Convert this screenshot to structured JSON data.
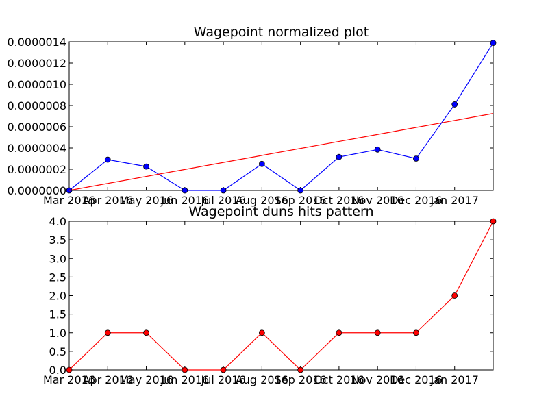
{
  "chart_data": [
    {
      "type": "line",
      "title": "Wagepoint normalized plot",
      "xlabel": "",
      "ylabel": "",
      "categories": [
        "Mar 2016",
        "Apr 2016",
        "May 2016",
        "Jun 2016",
        "Jul 2016",
        "Aug 2016",
        "Sep 2016",
        "Oct 2016",
        "Nov 2016",
        "Dec 2016",
        "Jan 2017"
      ],
      "ylim": [
        0,
        1.4e-06
      ],
      "yticks": [
        "0.0000000",
        "0.0000002",
        "0.0000004",
        "0.0000006",
        "0.0000008",
        "0.0000010",
        "0.0000012",
        "0.0000014"
      ],
      "grid": false,
      "series": [
        {
          "color": "#0000ff",
          "marker": "circle",
          "x": [
            0,
            1,
            2,
            3,
            4,
            5,
            6,
            7,
            8,
            9,
            10,
            11
          ],
          "values": [
            0.0,
            2.9e-07,
            2.25e-07,
            0.0,
            0.0,
            2.5e-07,
            0.0,
            3.15e-07,
            3.85e-07,
            3e-07,
            8.1e-07,
            1.39e-06
          ]
        },
        {
          "color": "#ff0000",
          "marker": "none",
          "x": [
            0,
            11
          ],
          "values": [
            0.0,
            7.25e-07
          ]
        }
      ]
    },
    {
      "type": "line",
      "title": "Wagepoint duns hits pattern",
      "xlabel": "",
      "ylabel": "",
      "categories": [
        "Mar 2016",
        "Apr 2016",
        "May 2016",
        "Jun 2016",
        "Jul 2016",
        "Aug 2016",
        "Sep 2016",
        "Oct 2016",
        "Nov 2016",
        "Dec 2016",
        "Jan 2017"
      ],
      "ylim": [
        0,
        4.0
      ],
      "yticks": [
        "0.0",
        "0.5",
        "1.0",
        "1.5",
        "2.0",
        "2.5",
        "3.0",
        "3.5",
        "4.0"
      ],
      "grid": false,
      "series": [
        {
          "color": "#ff0000",
          "marker": "circle",
          "x": [
            0,
            1,
            2,
            3,
            4,
            5,
            6,
            7,
            8,
            9,
            10,
            11
          ],
          "values": [
            0,
            1,
            1,
            0,
            0,
            1,
            0,
            1,
            1,
            1,
            2,
            4
          ]
        }
      ]
    }
  ]
}
